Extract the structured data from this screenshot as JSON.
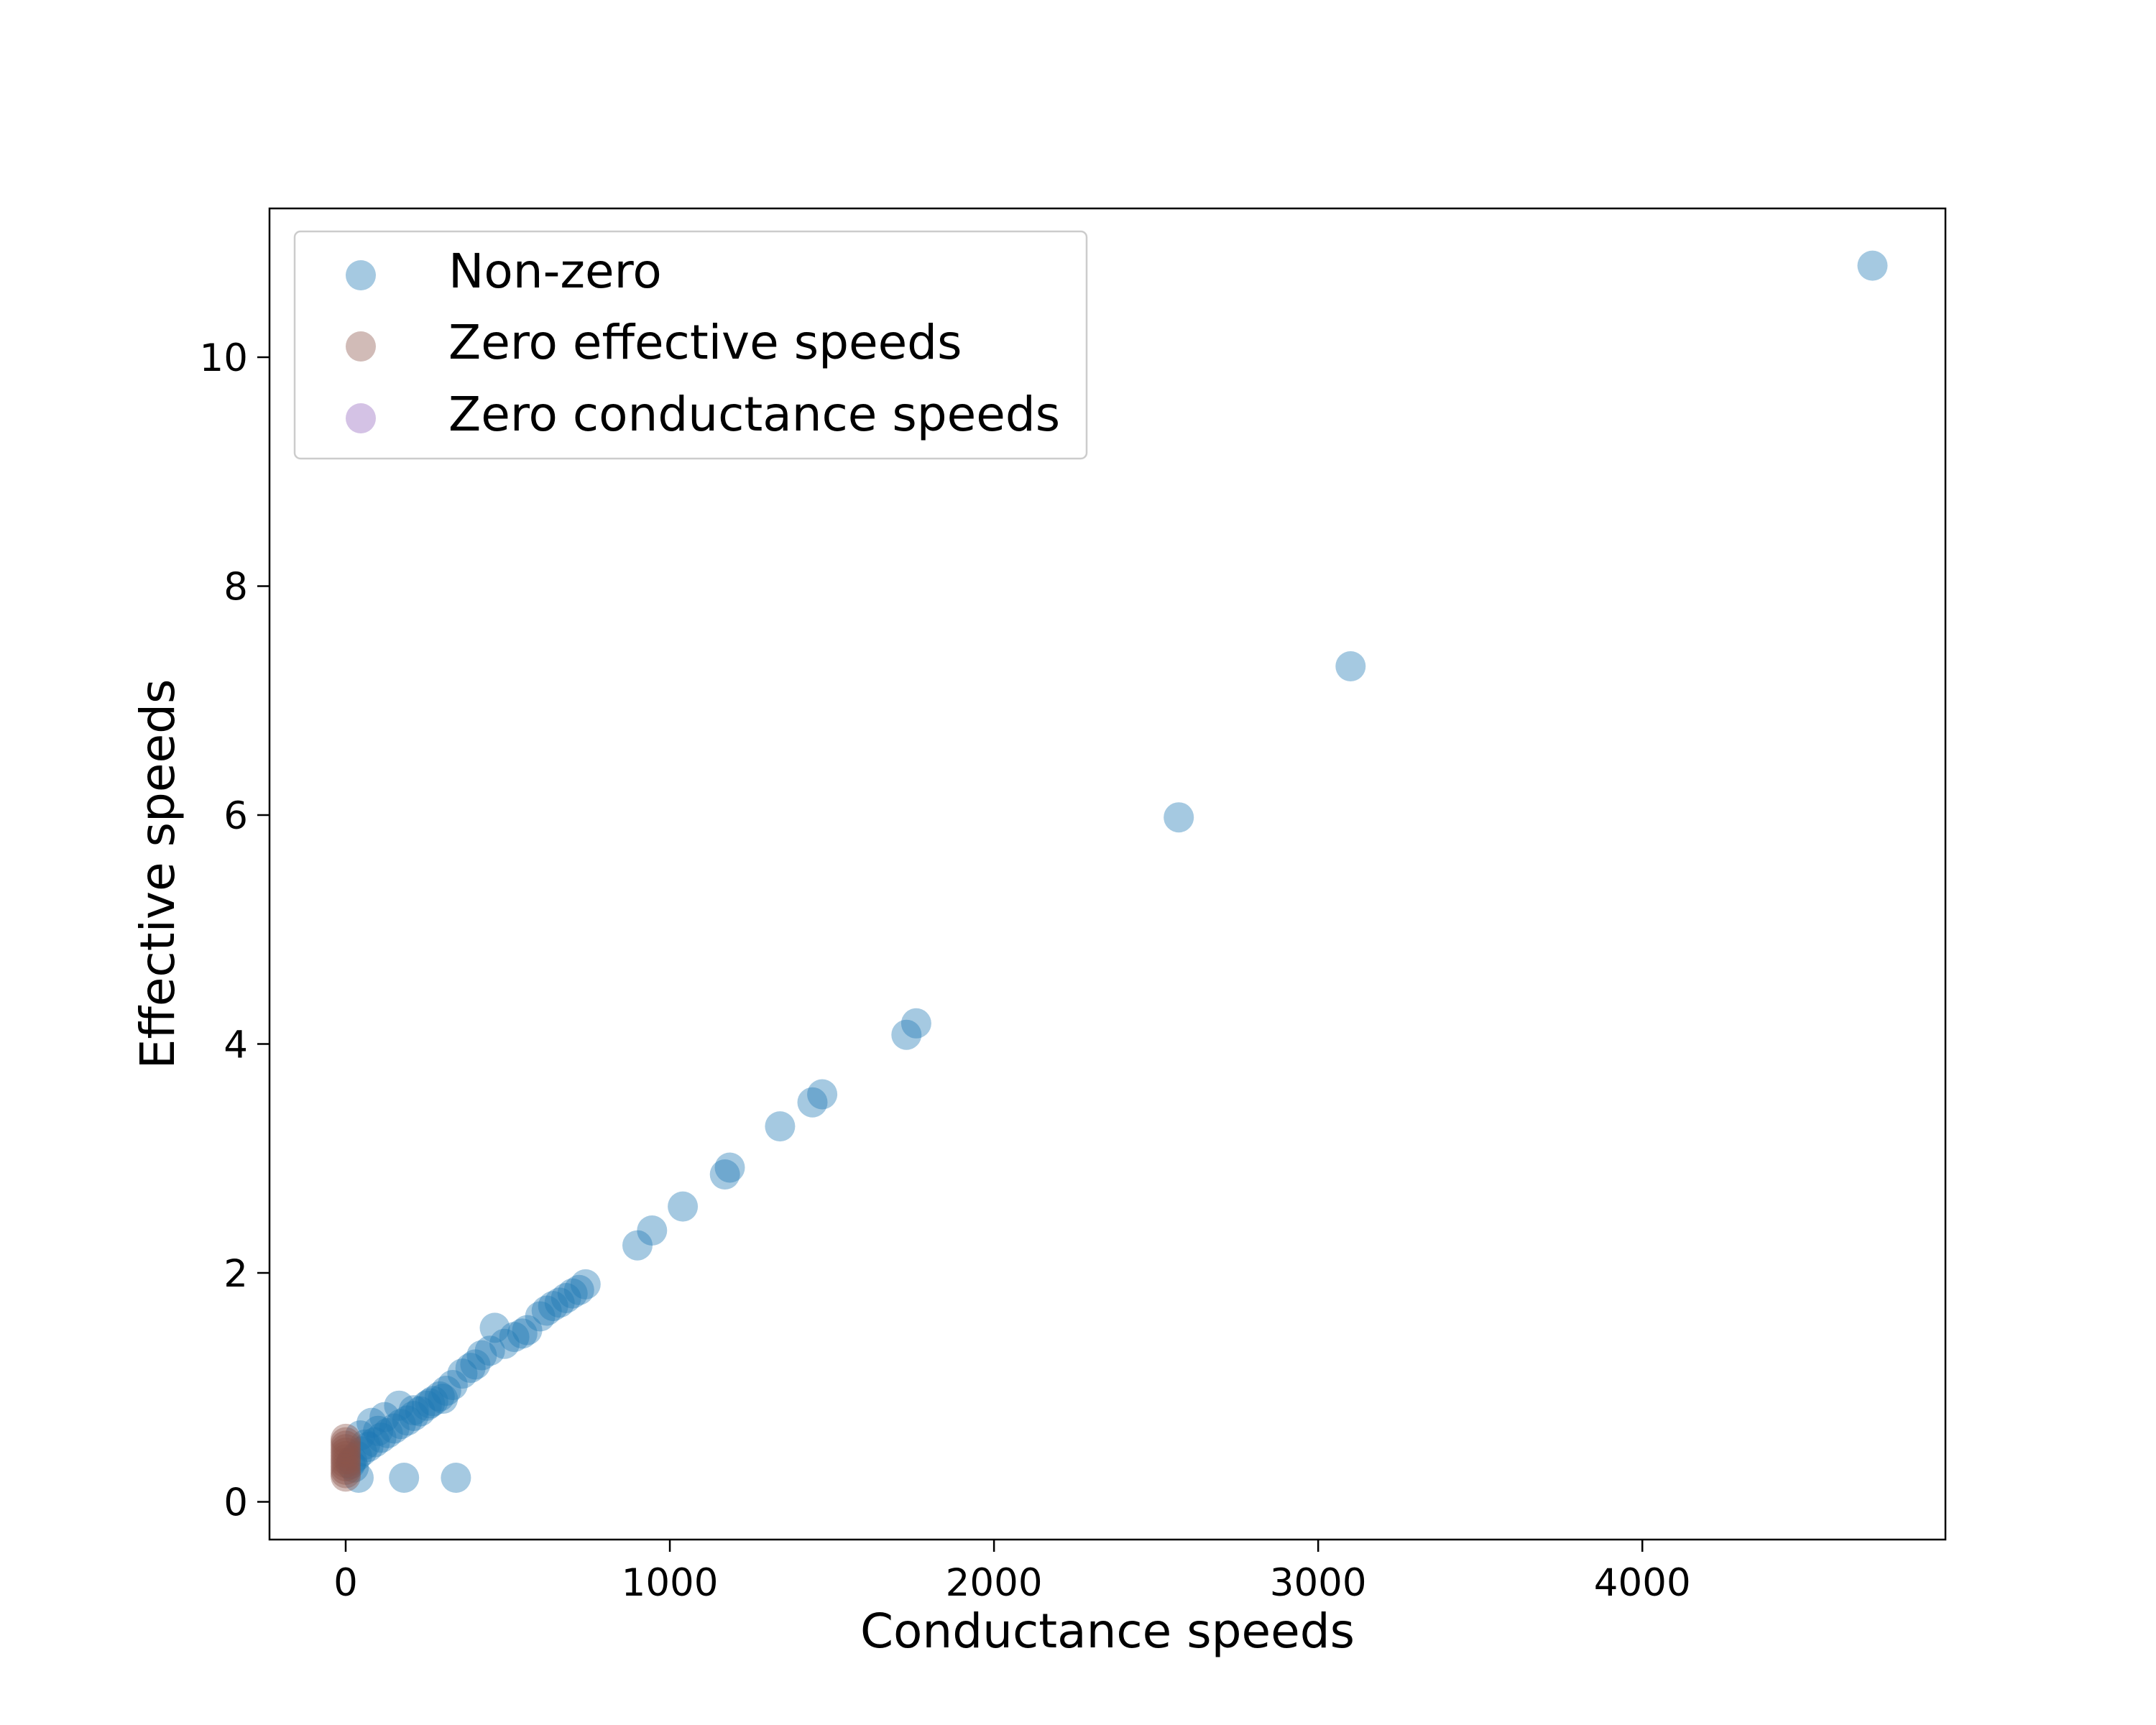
{
  "chart_data": {
    "type": "scatter",
    "title": "",
    "xlabel": "Conductance speeds",
    "ylabel": "Effective speeds",
    "xlim": [
      -235,
      4935
    ],
    "ylim": [
      -0.33,
      11.3
    ],
    "xticks": [
      0,
      1000,
      2000,
      3000,
      4000
    ],
    "xtick_labels": [
      "0",
      "1000",
      "2000",
      "3000",
      "4000"
    ],
    "yticks": [
      0,
      2,
      4,
      6,
      8,
      10
    ],
    "ytick_labels": [
      "0",
      "2",
      "4",
      "6",
      "8",
      "10"
    ],
    "grid": false,
    "legend_position": "top-left",
    "series": [
      {
        "name": "Non-zero",
        "color": "#1f77b4",
        "alpha": 0.4,
        "points": [
          [
            4710,
            10.8
          ],
          [
            3100,
            7.3
          ],
          [
            2570,
            5.98
          ],
          [
            1760,
            4.18
          ],
          [
            1730,
            4.08
          ],
          [
            1470,
            3.56
          ],
          [
            1440,
            3.49
          ],
          [
            1340,
            3.28
          ],
          [
            1185,
            2.92
          ],
          [
            1170,
            2.86
          ],
          [
            1040,
            2.58
          ],
          [
            945,
            2.37
          ],
          [
            900,
            2.24
          ],
          [
            740,
            1.9
          ],
          [
            720,
            1.85
          ],
          [
            700,
            1.82
          ],
          [
            680,
            1.78
          ],
          [
            660,
            1.74
          ],
          [
            640,
            1.71
          ],
          [
            620,
            1.67
          ],
          [
            600,
            1.62
          ],
          [
            560,
            1.5
          ],
          [
            545,
            1.47
          ],
          [
            520,
            1.44
          ],
          [
            490,
            1.38
          ],
          [
            460,
            1.52
          ],
          [
            445,
            1.32
          ],
          [
            420,
            1.28
          ],
          [
            400,
            1.2
          ],
          [
            385,
            1.17
          ],
          [
            360,
            1.12
          ],
          [
            330,
            1.02
          ],
          [
            310,
            0.97
          ],
          [
            290,
            0.92
          ],
          [
            270,
            0.88
          ],
          [
            250,
            0.84
          ],
          [
            230,
            0.79
          ],
          [
            210,
            0.75
          ],
          [
            190,
            0.71
          ],
          [
            170,
            0.68
          ],
          [
            150,
            0.64
          ],
          [
            130,
            0.6
          ],
          [
            110,
            0.56
          ],
          [
            90,
            0.52
          ],
          [
            70,
            0.48
          ],
          [
            50,
            0.44
          ],
          [
            35,
            0.4
          ],
          [
            20,
            0.36
          ],
          [
            165,
            0.84
          ],
          [
            120,
            0.74
          ],
          [
            80,
            0.69
          ],
          [
            45,
            0.58
          ],
          [
            25,
            0.3
          ],
          [
            40,
            0.21
          ],
          [
            180,
            0.21
          ],
          [
            340,
            0.21
          ],
          [
            260,
            0.86
          ],
          [
            300,
            0.9
          ],
          [
            210,
            0.8
          ],
          [
            100,
            0.62
          ],
          [
            60,
            0.5
          ],
          [
            15,
            0.33
          ]
        ]
      },
      {
        "name": "Zero effective speeds",
        "color": "#8c564b",
        "alpha": 0.4,
        "points": [
          [
            0,
            0.22
          ],
          [
            0,
            0.25
          ],
          [
            0,
            0.28
          ],
          [
            0,
            0.31
          ],
          [
            0,
            0.34
          ],
          [
            0,
            0.37
          ],
          [
            0,
            0.4
          ],
          [
            0,
            0.43
          ],
          [
            0,
            0.46
          ],
          [
            0,
            0.49
          ],
          [
            0,
            0.52
          ],
          [
            0,
            0.55
          ]
        ]
      },
      {
        "name": "Zero conductance speeds",
        "color": "#9467bd",
        "alpha": 0.4,
        "points": []
      }
    ]
  }
}
